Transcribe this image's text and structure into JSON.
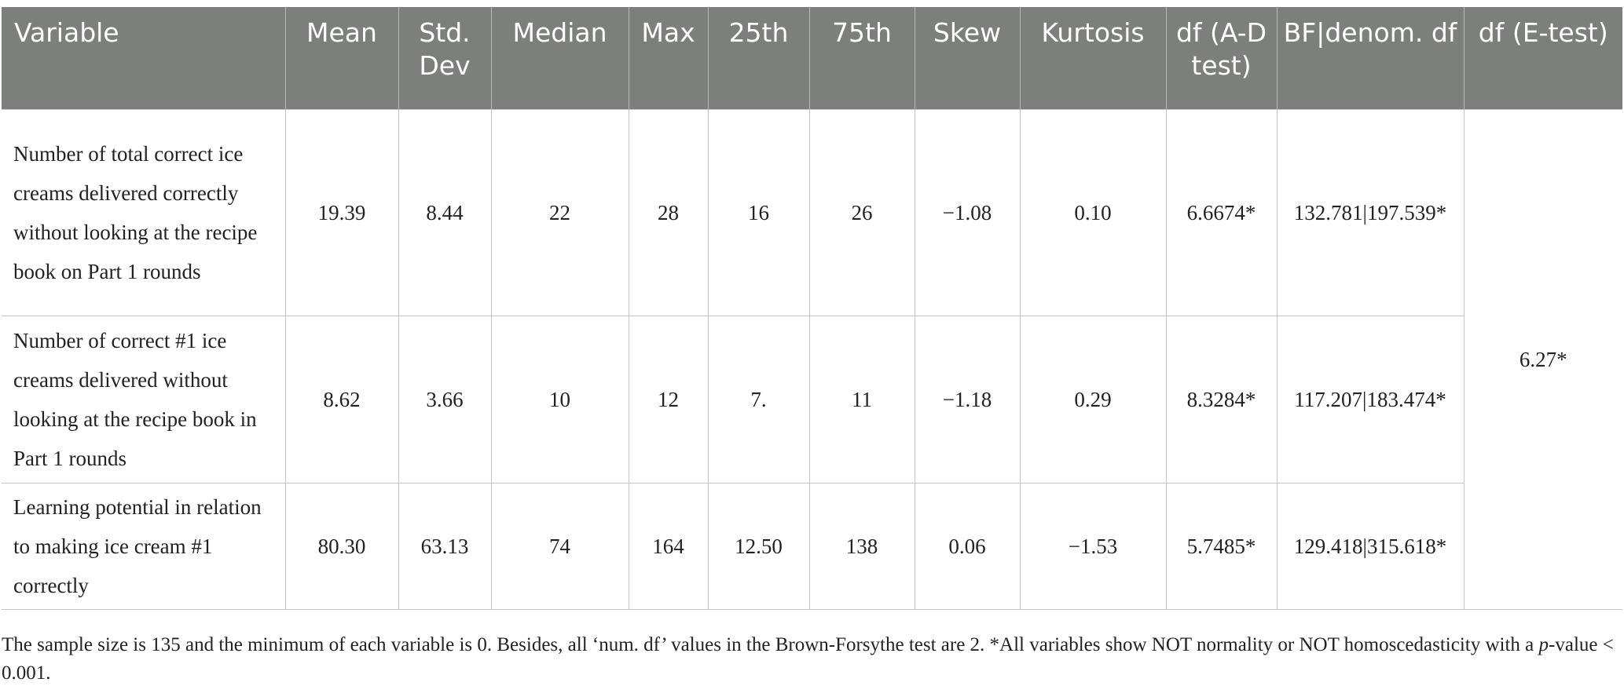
{
  "table": {
    "headers": [
      "Variable",
      "Mean",
      "Std. Dev",
      "Median",
      "Max",
      "25th",
      "75th",
      "Skew",
      "Kurtosis",
      "df (A-D test)",
      "BF|denom. df",
      "df (E-test)"
    ],
    "rows": [
      {
        "variable": "Number of total correct ice creams delivered correctly without looking at the recipe book on Part 1 rounds",
        "mean": "19.39",
        "std_dev": "8.44",
        "median": "22",
        "max": "28",
        "p25": "16",
        "p75": "26",
        "skew": "−1.08",
        "kurtosis": "0.10",
        "df_ad": "6.6674*",
        "bf_denom_df": "132.781|197.539*"
      },
      {
        "variable": "Number of correct #1 ice creams delivered without looking at the recipe book in Part 1 rounds",
        "mean": "8.62",
        "std_dev": "3.66",
        "median": "10",
        "max": "12",
        "p25": "7.",
        "p75": "11",
        "skew": "−1.18",
        "kurtosis": "0.29",
        "df_ad": "8.3284*",
        "bf_denom_df": "117.207|183.474*"
      },
      {
        "variable": "Learning potential in relation to making ice cream #1 correctly",
        "mean": "80.30",
        "std_dev": "63.13",
        "median": "74",
        "max": "164",
        "p25": "12.50",
        "p75": "138",
        "skew": "0.06",
        "kurtosis": "−1.53",
        "df_ad": "5.7485*",
        "bf_denom_df": "129.418|315.618*"
      }
    ],
    "df_e_test": "6.27*"
  },
  "caption": {
    "part1": "The sample size is 135 and the minimum of each variable is 0. Besides, all ‘num. df’ values in the Brown-Forsythe test are 2. *All variables show NOT normality or NOT homoscedasticity with a ",
    "p_label": "p",
    "part2": "-value < 0.001."
  }
}
